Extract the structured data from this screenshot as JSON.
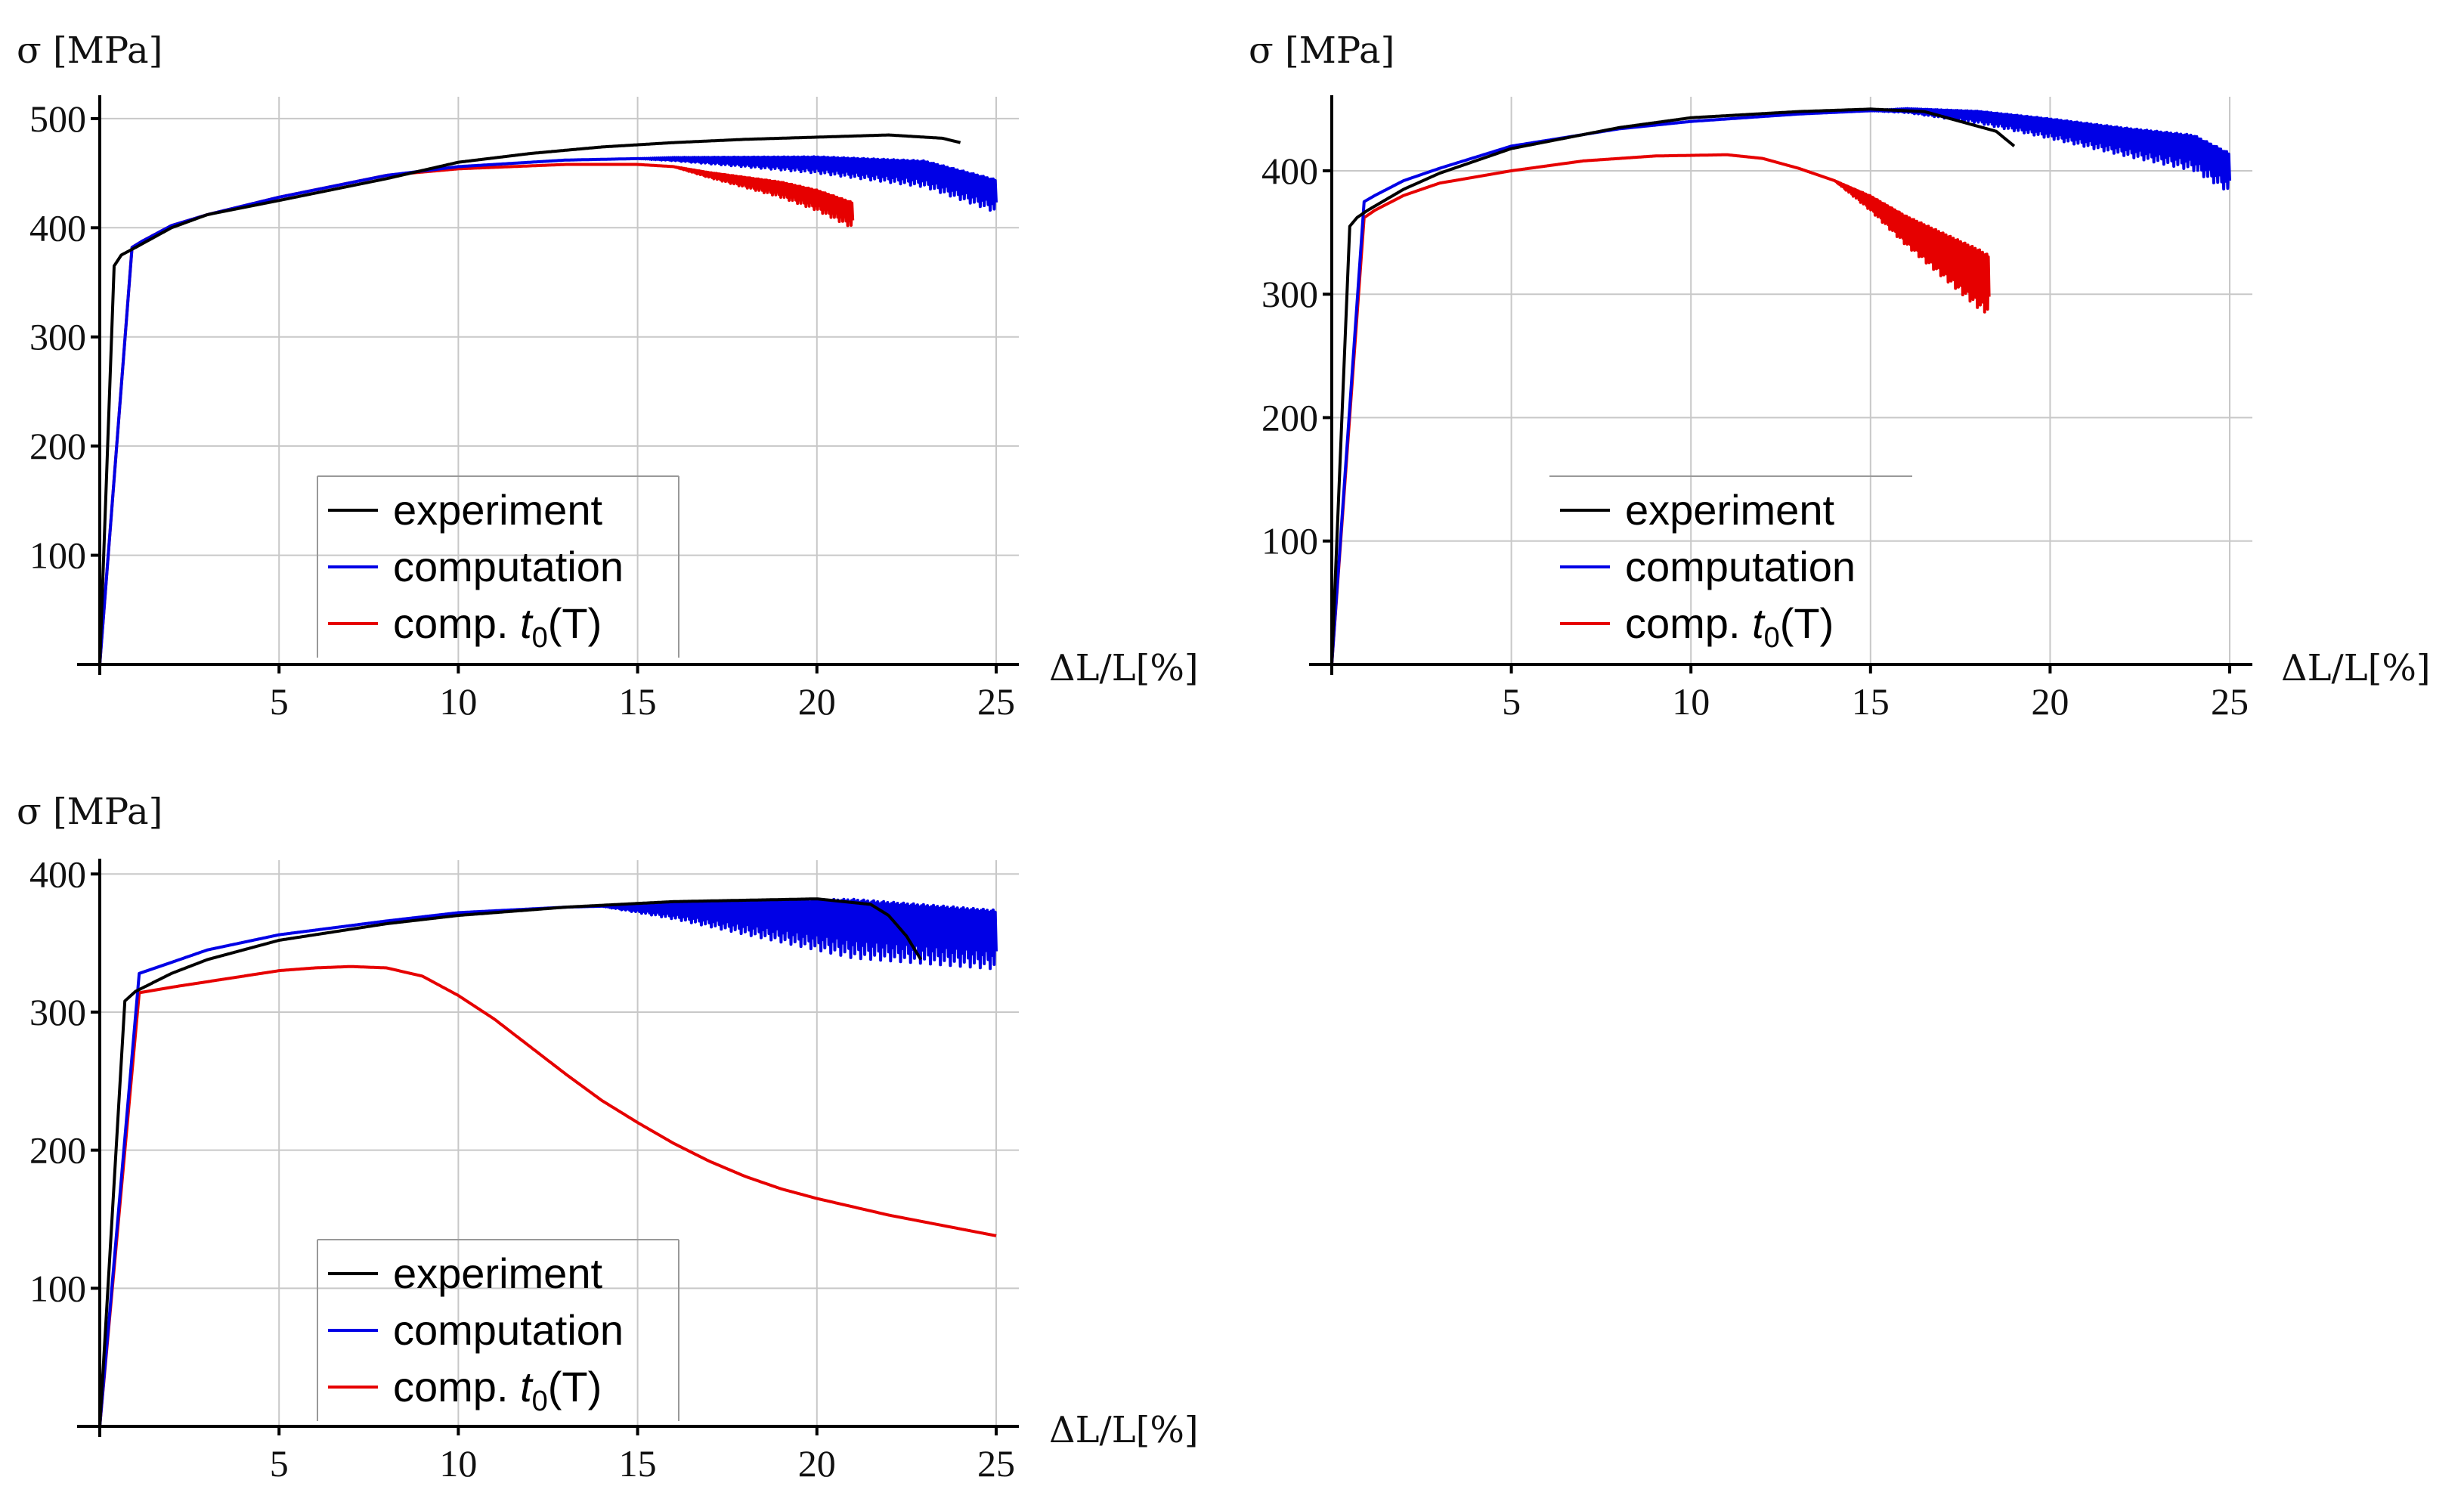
{
  "chart_data": [
    {
      "type": "line",
      "panel": "top-left",
      "ylabel": "σ [MPa]",
      "xlabel": "ΔL/L[%]",
      "xlim": [
        0,
        25
      ],
      "ylim": [
        0,
        520
      ],
      "xticks": [
        5,
        10,
        15,
        20,
        25
      ],
      "xtick_labels": [
        "5",
        "10",
        "15",
        "20",
        "25"
      ],
      "yticks": [
        100,
        200,
        300,
        400,
        500
      ],
      "ytick_labels": [
        "100",
        "200",
        "300",
        "400",
        "500"
      ],
      "legend": {
        "position": "bottom-left",
        "entries": [
          "experiment",
          "computation",
          "comp. t0(T)"
        ]
      },
      "series": [
        {
          "name": "experiment",
          "color": "#000000",
          "noise": [
            0,
            0,
            0
          ],
          "x": [
            0,
            0.4,
            0.6,
            1,
            2,
            3,
            5,
            8,
            10,
            12,
            14,
            16,
            18,
            20,
            22,
            23.5,
            24
          ],
          "y": [
            0,
            365,
            375,
            382,
            400,
            412,
            425,
            445,
            460,
            468,
            474,
            478,
            481,
            483,
            485,
            482,
            478
          ]
        },
        {
          "name": "computation",
          "color": "#0000e6",
          "noise": [
            15,
            25,
            28
          ],
          "x": [
            0,
            0.9,
            1.2,
            2,
            3,
            5,
            8,
            10,
            13,
            16,
            20,
            23,
            25
          ],
          "y": [
            0,
            382,
            388,
            402,
            412,
            428,
            448,
            456,
            462,
            464,
            463,
            458,
            440
          ]
        },
        {
          "name": "comp. t0(T)",
          "color": "#e60000",
          "noise": [
            16,
            21,
            22
          ],
          "x": [
            0,
            0.9,
            1.2,
            2,
            3,
            5,
            8,
            10,
            13,
            15,
            16,
            17,
            18,
            19,
            20,
            21
          ],
          "y": [
            0,
            382,
            388,
            402,
            412,
            428,
            448,
            454,
            458,
            458,
            456,
            450,
            445,
            440,
            432,
            420
          ]
        }
      ]
    },
    {
      "type": "line",
      "panel": "top-right",
      "ylabel": "σ [MPa]",
      "xlabel": "ΔL/L[%]",
      "xlim": [
        0,
        25
      ],
      "ylim": [
        0,
        460
      ],
      "xticks": [
        5,
        10,
        15,
        20,
        25
      ],
      "xtick_labels": [
        "5",
        "10",
        "15",
        "20",
        "25"
      ],
      "yticks": [
        100,
        200,
        300,
        400
      ],
      "ytick_labels": [
        "100",
        "200",
        "300",
        "400"
      ],
      "legend": {
        "position": "bottom-center",
        "entries": [
          "experiment",
          "computation",
          "comp. t0(T)"
        ]
      },
      "series": [
        {
          "name": "experiment",
          "color": "#000000",
          "noise": [
            0,
            0,
            0
          ],
          "x": [
            0,
            0.5,
            0.7,
            1,
            2,
            3,
            5,
            8,
            10,
            13,
            15,
            16.5,
            17.5,
            18.5,
            19
          ],
          "y": [
            0,
            355,
            362,
            368,
            385,
            398,
            418,
            435,
            443,
            448,
            450,
            448,
            440,
            432,
            420
          ]
        },
        {
          "name": "computation",
          "color": "#0000e6",
          "noise": [
            15,
            25,
            30
          ],
          "x": [
            0,
            0.9,
            1.2,
            2,
            3,
            5,
            8,
            10,
            13,
            16,
            18,
            20,
            22,
            24,
            25
          ],
          "y": [
            0,
            375,
            380,
            392,
            402,
            420,
            434,
            440,
            446,
            450,
            447,
            440,
            432,
            425,
            410
          ]
        },
        {
          "name": "comp. t0(T)",
          "color": "#e60000",
          "noise": [
            14,
            18,
            45
          ],
          "x": [
            0,
            0.9,
            1.2,
            2,
            3,
            5,
            7,
            9,
            11,
            12,
            13,
            14,
            15,
            16,
            17,
            18,
            18.3
          ],
          "y": [
            0,
            362,
            368,
            380,
            390,
            400,
            408,
            412,
            413,
            410,
            402,
            392,
            378,
            360,
            345,
            330,
            325
          ]
        }
      ]
    },
    {
      "type": "line",
      "panel": "bottom-left",
      "ylabel": "σ [MPa]",
      "xlabel": "ΔL/L[%]",
      "xlim": [
        0,
        25
      ],
      "ylim": [
        0,
        410
      ],
      "xticks": [
        5,
        10,
        15,
        20,
        25
      ],
      "xtick_labels": [
        "5",
        "10",
        "15",
        "20",
        "25"
      ],
      "yticks": [
        100,
        200,
        300,
        400
      ],
      "ytick_labels": [
        "100",
        "200",
        "300",
        "400"
      ],
      "legend": {
        "position": "bottom-left",
        "entries": [
          "experiment",
          "computation",
          "comp. t0(T)"
        ]
      },
      "series": [
        {
          "name": "experiment",
          "color": "#000000",
          "noise": [
            0,
            0,
            0
          ],
          "x": [
            0,
            0.7,
            1,
            2,
            3,
            5,
            8,
            10,
            13,
            16,
            20,
            21.5,
            22,
            22.5,
            22.9
          ],
          "y": [
            0,
            308,
            315,
            328,
            338,
            352,
            364,
            370,
            376,
            380,
            382,
            378,
            370,
            355,
            338
          ]
        },
        {
          "name": "computation",
          "color": "#0000e6",
          "noise": [
            14,
            21,
            40
          ],
          "x": [
            0,
            1.1,
            2,
            3,
            5,
            8,
            10,
            13,
            16,
            19,
            21,
            23,
            25
          ],
          "y": [
            0,
            328,
            336,
            345,
            356,
            366,
            372,
            376,
            378,
            377,
            376,
            372,
            368
          ]
        },
        {
          "name": "comp. t0(T)",
          "color": "#e60000",
          "noise": [
            0,
            0,
            0
          ],
          "x": [
            0,
            1.1,
            2,
            3,
            5,
            6,
            7,
            8,
            9,
            10,
            11,
            12,
            13,
            14,
            15,
            16,
            17,
            18,
            19,
            20,
            21,
            22,
            23,
            24,
            25
          ],
          "y": [
            0,
            314,
            318,
            322,
            330,
            332,
            333,
            332,
            326,
            312,
            295,
            275,
            255,
            236,
            220,
            205,
            192,
            181,
            172,
            165,
            159,
            153,
            148,
            143,
            138
          ]
        }
      ]
    }
  ]
}
